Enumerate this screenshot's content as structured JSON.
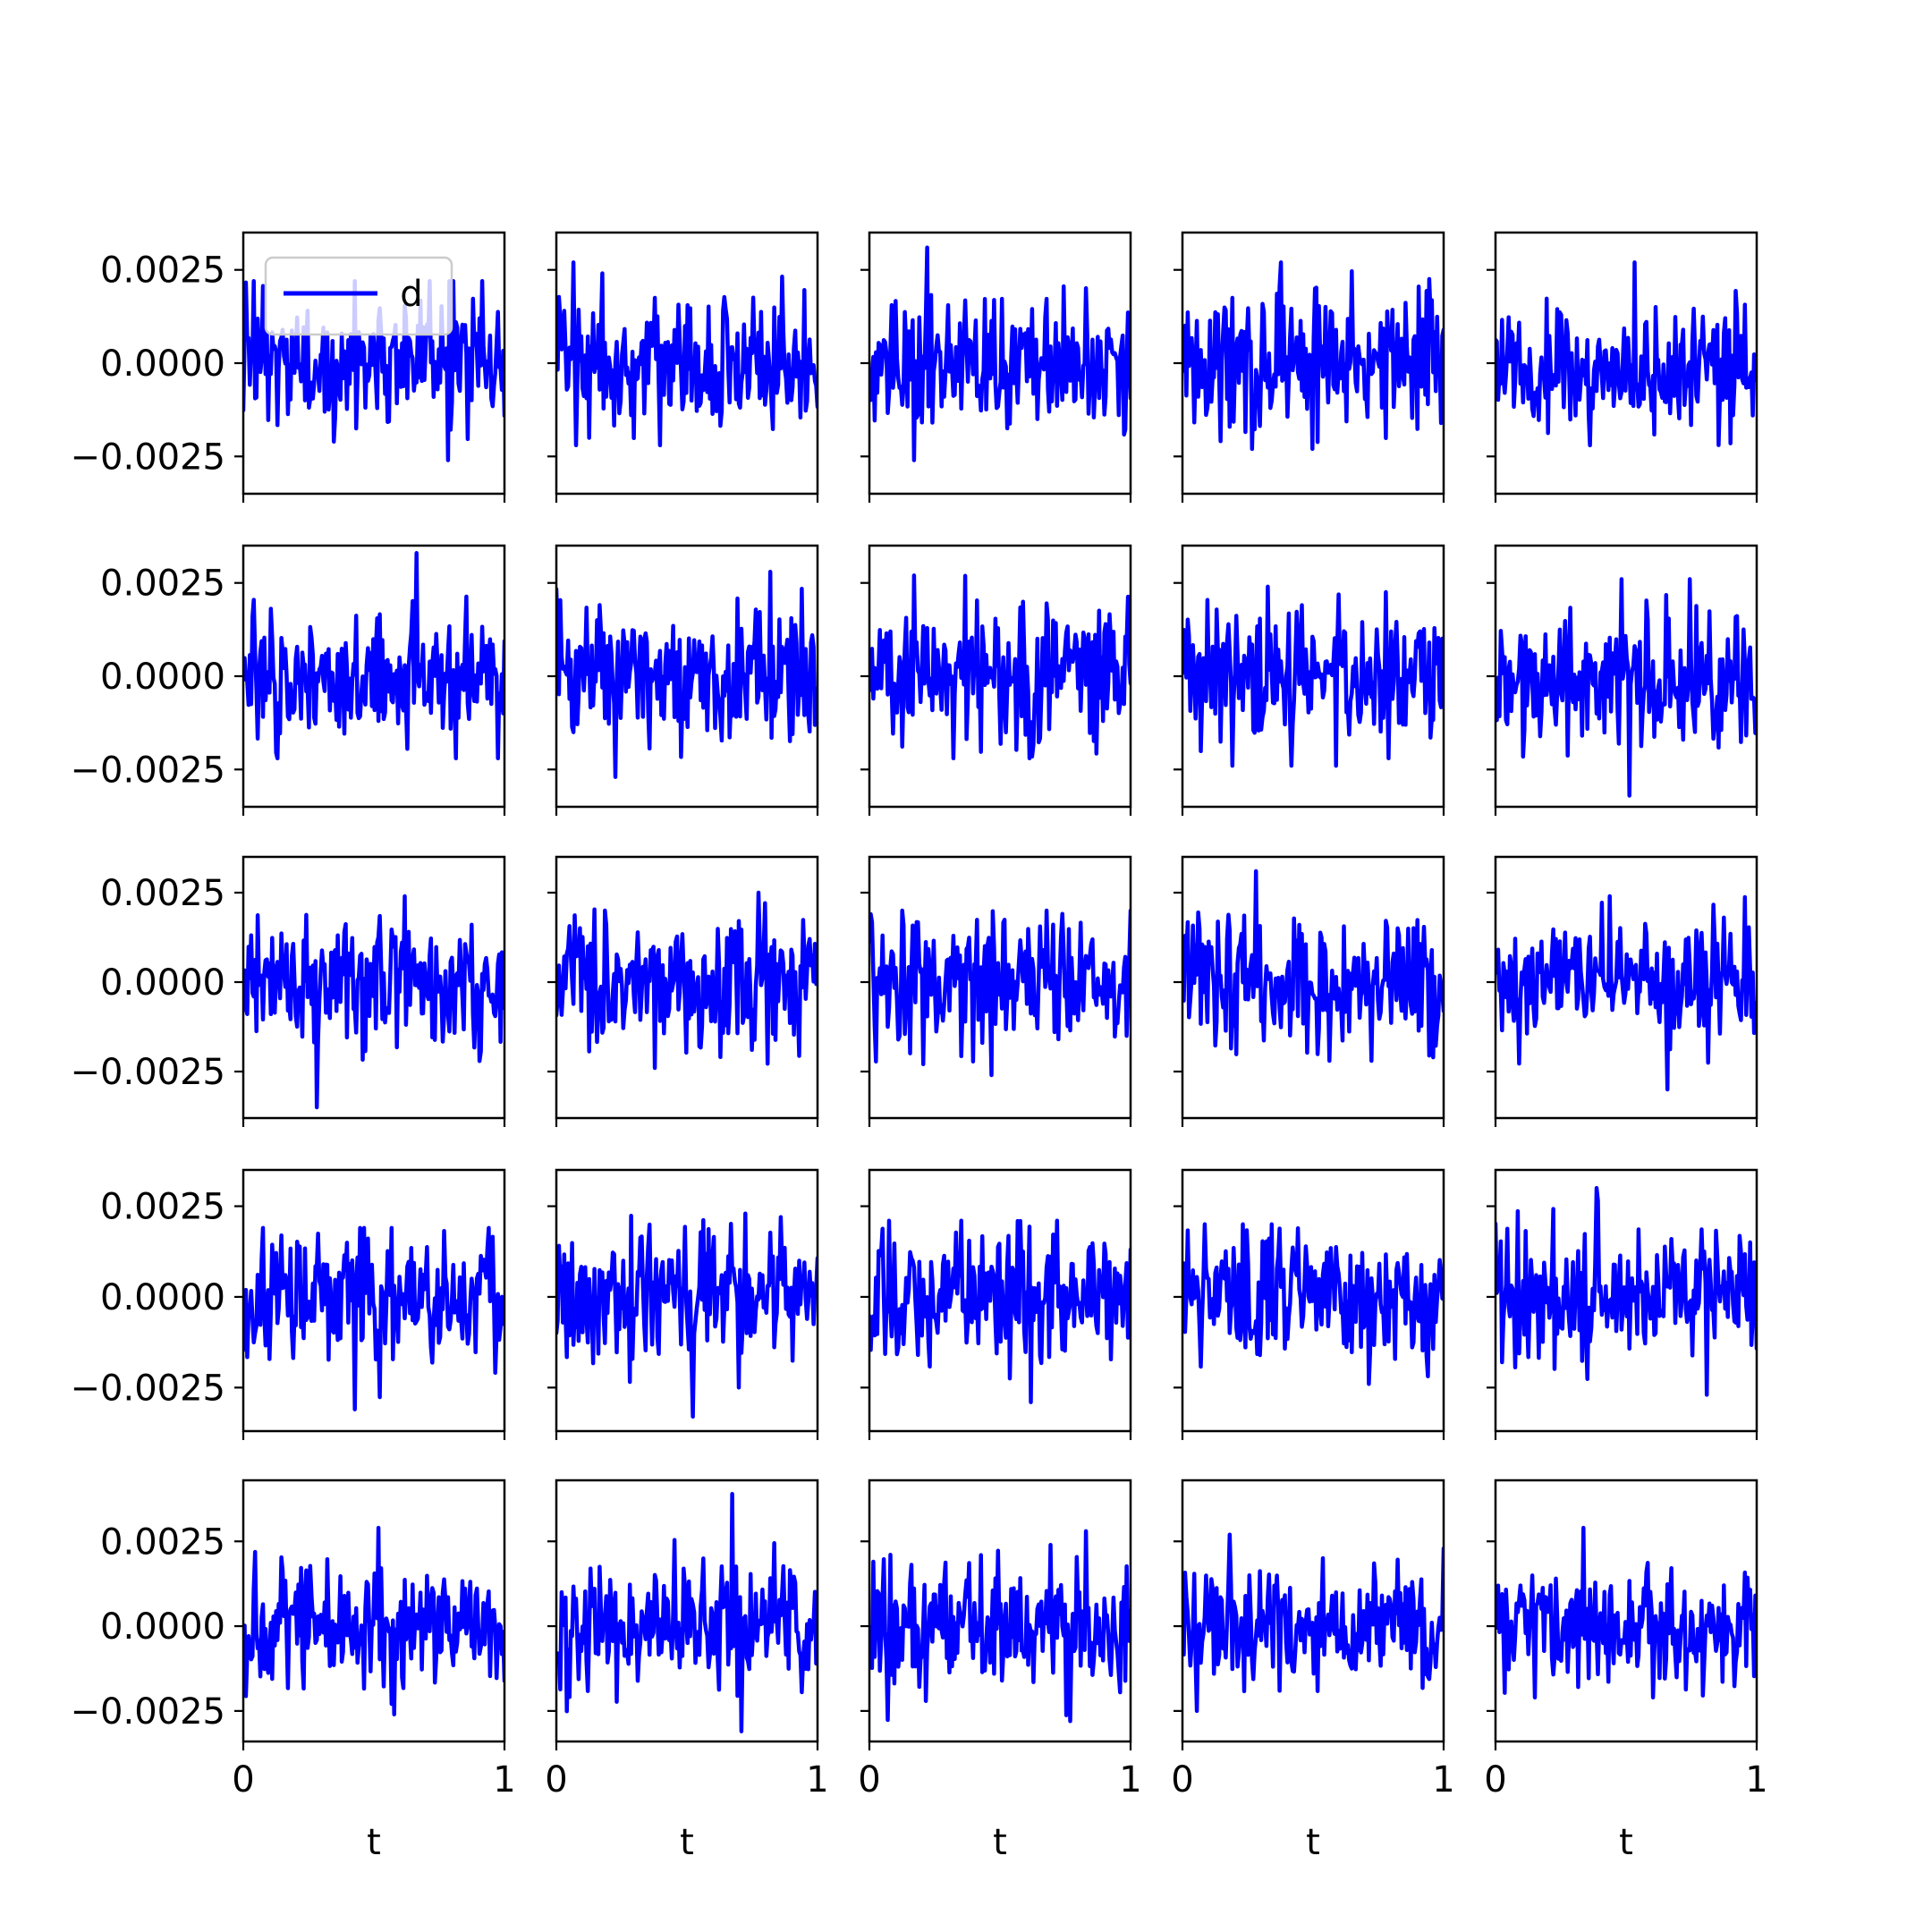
{
  "chart_data": {
    "type": "line",
    "layout": {
      "rows": 5,
      "cols": 5,
      "sharey_per_row": true
    },
    "xlabel": "t",
    "xlim": [
      0,
      1
    ],
    "x_ticks": [
      0,
      1
    ],
    "x_tick_labels": [
      "0",
      "1"
    ],
    "legend": {
      "label": "d",
      "placement": "top-left",
      "panel": [
        0,
        0
      ]
    },
    "series_color": "#0000ff",
    "rows": [
      {
        "ylim": [
          -0.0035,
          0.0035
        ],
        "y_ticks": [
          -0.0025,
          0.0,
          0.0025
        ],
        "y_tick_labels": [
          "−0.0025",
          "0.0000",
          "0.0025"
        ],
        "panels": [
          {
            "name": "d",
            "min": -0.0026,
            "max": 0.0022,
            "seed": 11
          },
          {
            "name": "d",
            "min": -0.0022,
            "max": 0.0027,
            "seed": 12
          },
          {
            "name": "d",
            "min": -0.0026,
            "max": 0.0031,
            "seed": 13
          },
          {
            "name": "d",
            "min": -0.0023,
            "max": 0.0027,
            "seed": 14
          },
          {
            "name": "d",
            "min": -0.0022,
            "max": 0.0027,
            "seed": 15
          }
        ]
      },
      {
        "ylim": [
          -0.0035,
          0.0035
        ],
        "y_ticks": [
          -0.0025,
          0.0,
          0.0025
        ],
        "y_tick_labels": [
          "−0.0025",
          "0.0000",
          "0.0025"
        ],
        "panels": [
          {
            "name": "d",
            "min": -0.0022,
            "max": 0.0033,
            "seed": 21
          },
          {
            "name": "d",
            "min": -0.0027,
            "max": 0.0028,
            "seed": 22
          },
          {
            "name": "d",
            "min": -0.0022,
            "max": 0.0027,
            "seed": 23
          },
          {
            "name": "d",
            "min": -0.0024,
            "max": 0.0024,
            "seed": 24
          },
          {
            "name": "d",
            "min": -0.0032,
            "max": 0.0026,
            "seed": 25
          }
        ]
      },
      {
        "ylim": [
          -0.0038,
          0.0035
        ],
        "y_ticks": [
          -0.0025,
          0.0,
          0.0025
        ],
        "y_tick_labels": [
          "−0.0025",
          "0.0000",
          "0.0025"
        ],
        "panels": [
          {
            "name": "d",
            "min": -0.0035,
            "max": 0.0024,
            "seed": 31
          },
          {
            "name": "d",
            "min": -0.0024,
            "max": 0.0025,
            "seed": 32
          },
          {
            "name": "d",
            "min": -0.0026,
            "max": 0.002,
            "seed": 33
          },
          {
            "name": "d",
            "min": -0.0022,
            "max": 0.0031,
            "seed": 34
          },
          {
            "name": "d",
            "min": -0.003,
            "max": 0.0024,
            "seed": 35
          }
        ]
      },
      {
        "ylim": [
          -0.0037,
          0.0035
        ],
        "y_ticks": [
          -0.0025,
          0.0,
          0.0025
        ],
        "y_tick_labels": [
          "−0.0025",
          "0.0000",
          "0.0025"
        ],
        "panels": [
          {
            "name": "d",
            "min": -0.0031,
            "max": 0.0019,
            "seed": 41
          },
          {
            "name": "d",
            "min": -0.0033,
            "max": 0.0023,
            "seed": 42
          },
          {
            "name": "d",
            "min": -0.0029,
            "max": 0.0021,
            "seed": 43
          },
          {
            "name": "d",
            "min": -0.0024,
            "max": 0.002,
            "seed": 44
          },
          {
            "name": "d",
            "min": -0.0027,
            "max": 0.003,
            "seed": 45
          }
        ]
      },
      {
        "ylim": [
          -0.0034,
          0.0043
        ],
        "y_ticks": [
          -0.0025,
          0.0,
          0.0025
        ],
        "y_tick_labels": [
          "−0.0025",
          "0.0000",
          "0.0025"
        ],
        "panels": [
          {
            "name": "d",
            "min": -0.0026,
            "max": 0.0029,
            "seed": 51
          },
          {
            "name": "d",
            "min": -0.0031,
            "max": 0.0039,
            "seed": 52
          },
          {
            "name": "d",
            "min": -0.0028,
            "max": 0.0028,
            "seed": 53
          },
          {
            "name": "d",
            "min": -0.0025,
            "max": 0.0027,
            "seed": 54
          },
          {
            "name": "d",
            "min": -0.0021,
            "max": 0.0029,
            "seed": 55
          }
        ]
      }
    ]
  }
}
